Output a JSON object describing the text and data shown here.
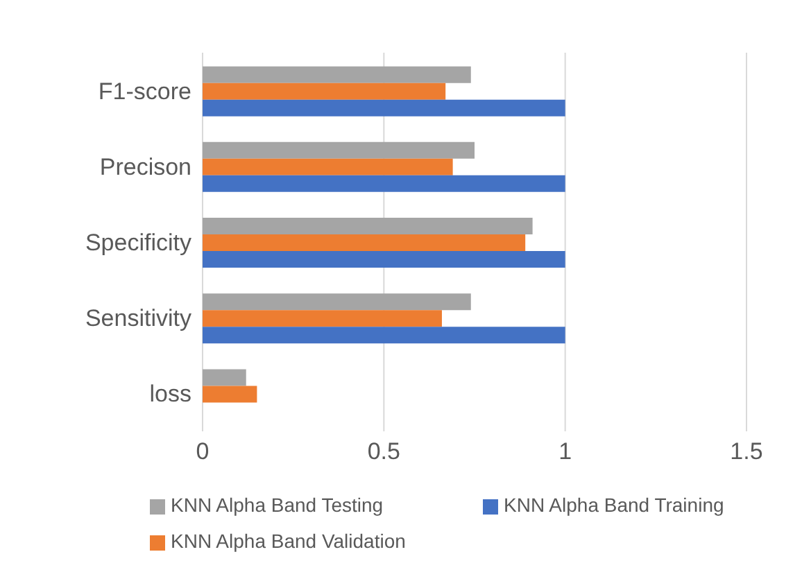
{
  "chart_data": {
    "type": "bar",
    "orientation": "horizontal",
    "categories": [
      "F1-score",
      "Precison",
      "Specificity",
      "Sensitivity",
      "loss"
    ],
    "series": [
      {
        "name": "KNN Alpha Band Testing",
        "color": "#a5a5a5",
        "values": [
          0.74,
          0.75,
          0.91,
          0.74,
          0.12
        ]
      },
      {
        "name": "KNN Alpha Band Validation",
        "color": "#ed7d31",
        "values": [
          0.67,
          0.69,
          0.89,
          0.66,
          0.15
        ]
      },
      {
        "name": "KNN Alpha Band Training",
        "color": "#4472c4",
        "values": [
          1,
          1,
          1,
          1,
          null
        ]
      }
    ],
    "xlim": [
      0,
      1.5
    ],
    "xticks": [
      0,
      0.5,
      1,
      1.5
    ],
    "grid": "x",
    "legend": "bottom"
  }
}
